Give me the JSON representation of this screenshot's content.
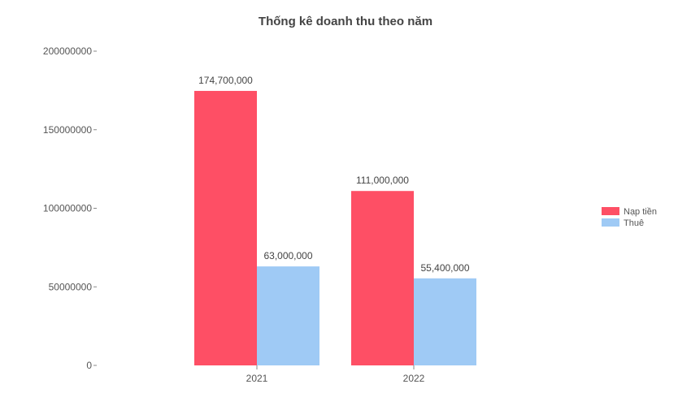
{
  "chart_data": {
    "type": "bar",
    "title": "Thống kê doanh thu theo năm",
    "categories": [
      "2021",
      "2022"
    ],
    "series": [
      {
        "name": "Nạp tiền",
        "color": "#fe4f65",
        "values": [
          174700000,
          111000000
        ],
        "labels": [
          "174,700,000",
          "111,000,000"
        ]
      },
      {
        "name": "Thuê",
        "color": "#9fcaf5",
        "values": [
          63000000,
          55400000
        ],
        "labels": [
          "63,000,000",
          "55,400,000"
        ]
      }
    ],
    "yticks": [
      0,
      50000000,
      100000000,
      150000000,
      200000000
    ],
    "ytick_labels": [
      "0",
      "50000000",
      "100000000",
      "150000000",
      "200000000"
    ],
    "ylim": [
      0,
      200000000
    ],
    "xlabel": "",
    "ylabel": "",
    "grid": false,
    "legend_position": "right"
  }
}
